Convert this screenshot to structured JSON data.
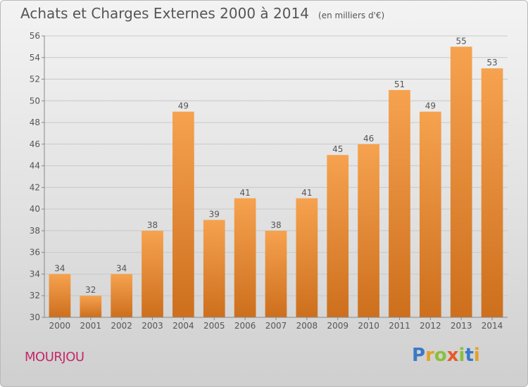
{
  "title": "Achats et Charges Externes 2000 à 2014",
  "unit_note": "(en milliers d'€)",
  "location": "MOURJOU",
  "logo": {
    "text": "Proxiti"
  },
  "colors": {
    "bar_light": "#f6a24f",
    "bar_dark": "#cd6f1d",
    "location": "#c3286a",
    "text": "#555555"
  },
  "chart_data": {
    "type": "bar",
    "categories": [
      "2000",
      "2001",
      "2002",
      "2003",
      "2004",
      "2005",
      "2006",
      "2007",
      "2008",
      "2009",
      "2010",
      "2011",
      "2012",
      "2013",
      "2014"
    ],
    "values": [
      34,
      32,
      34,
      38,
      49,
      39,
      41,
      38,
      41,
      45,
      46,
      51,
      49,
      55,
      53
    ],
    "ylim": [
      30,
      56
    ],
    "yticks": [
      30,
      32,
      34,
      36,
      38,
      40,
      42,
      44,
      46,
      48,
      50,
      52,
      54,
      56
    ],
    "grid": true,
    "data_labels": true
  }
}
